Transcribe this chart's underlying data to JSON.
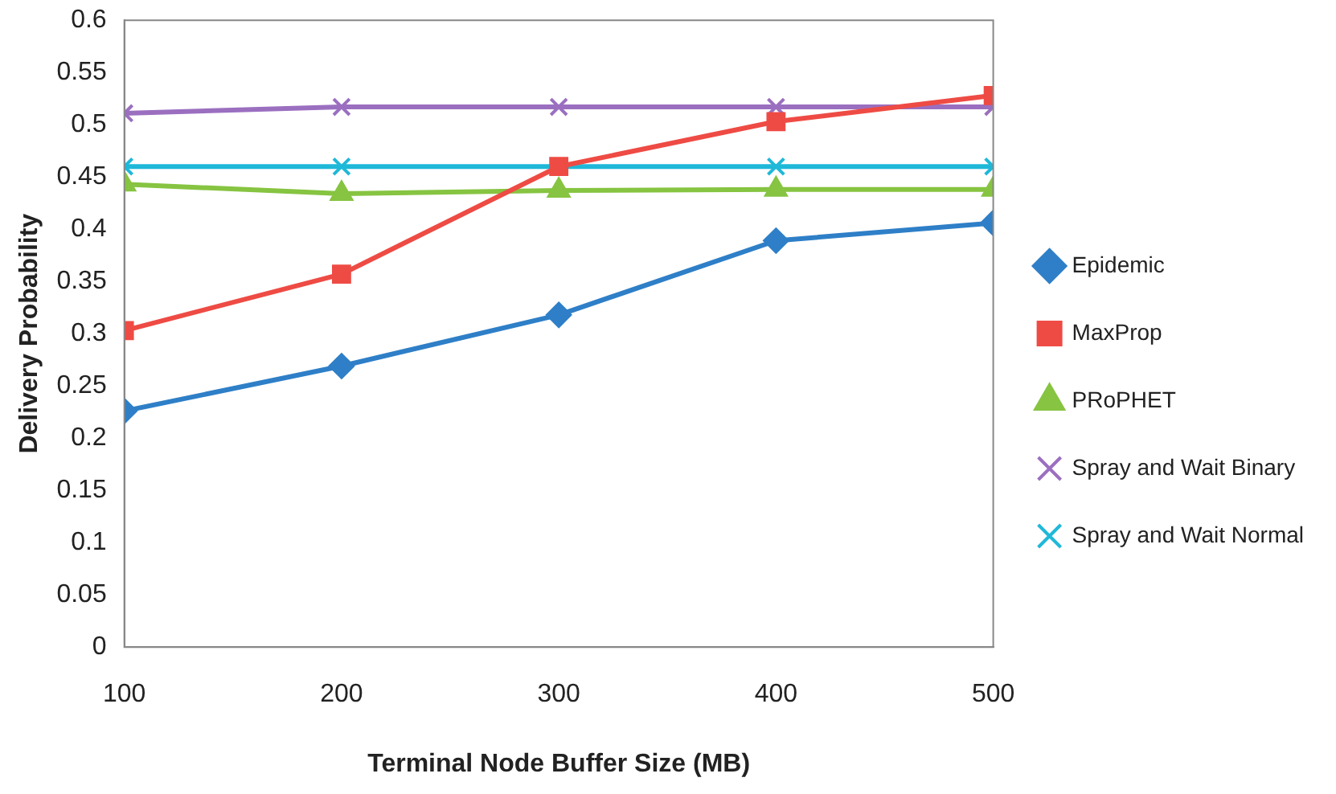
{
  "chart_data": {
    "type": "line",
    "xlabel": "Terminal Node Buffer Size (MB)",
    "ylabel": "Delivery Probability",
    "x": [
      100,
      200,
      300,
      400,
      500
    ],
    "xlim": [
      100,
      500
    ],
    "xticks": [
      100,
      200,
      300,
      400,
      500
    ],
    "ylim": [
      0,
      0.6
    ],
    "yticks": [
      0,
      0.05,
      0.1,
      0.15,
      0.2,
      0.25,
      0.3,
      0.35,
      0.4,
      0.45,
      0.5,
      0.55,
      0.6
    ],
    "grid": false,
    "legend": "right",
    "line_style": "solid",
    "series": [
      {
        "name": "Epidemic",
        "color": "#2e7fc7",
        "marker": "diamond",
        "values": [
          0.226,
          0.269,
          0.318,
          0.389,
          0.406
        ]
      },
      {
        "name": "MaxProp",
        "color": "#ee4b44",
        "marker": "square",
        "values": [
          0.303,
          0.357,
          0.46,
          0.503,
          0.528
        ]
      },
      {
        "name": "PRoPHET",
        "color": "#86c441",
        "marker": "triangle",
        "values": [
          0.443,
          0.434,
          0.437,
          0.438,
          0.438
        ]
      },
      {
        "name": "Spray and Wait Binary",
        "color": "#9b6fc0",
        "marker": "cross",
        "values": [
          0.511,
          0.517,
          0.517,
          0.517,
          0.517
        ]
      },
      {
        "name": "Spray and Wait Normal",
        "color": "#1fb8d8",
        "marker": "cross",
        "values": [
          0.46,
          0.46,
          0.46,
          0.46,
          0.46
        ]
      }
    ]
  }
}
